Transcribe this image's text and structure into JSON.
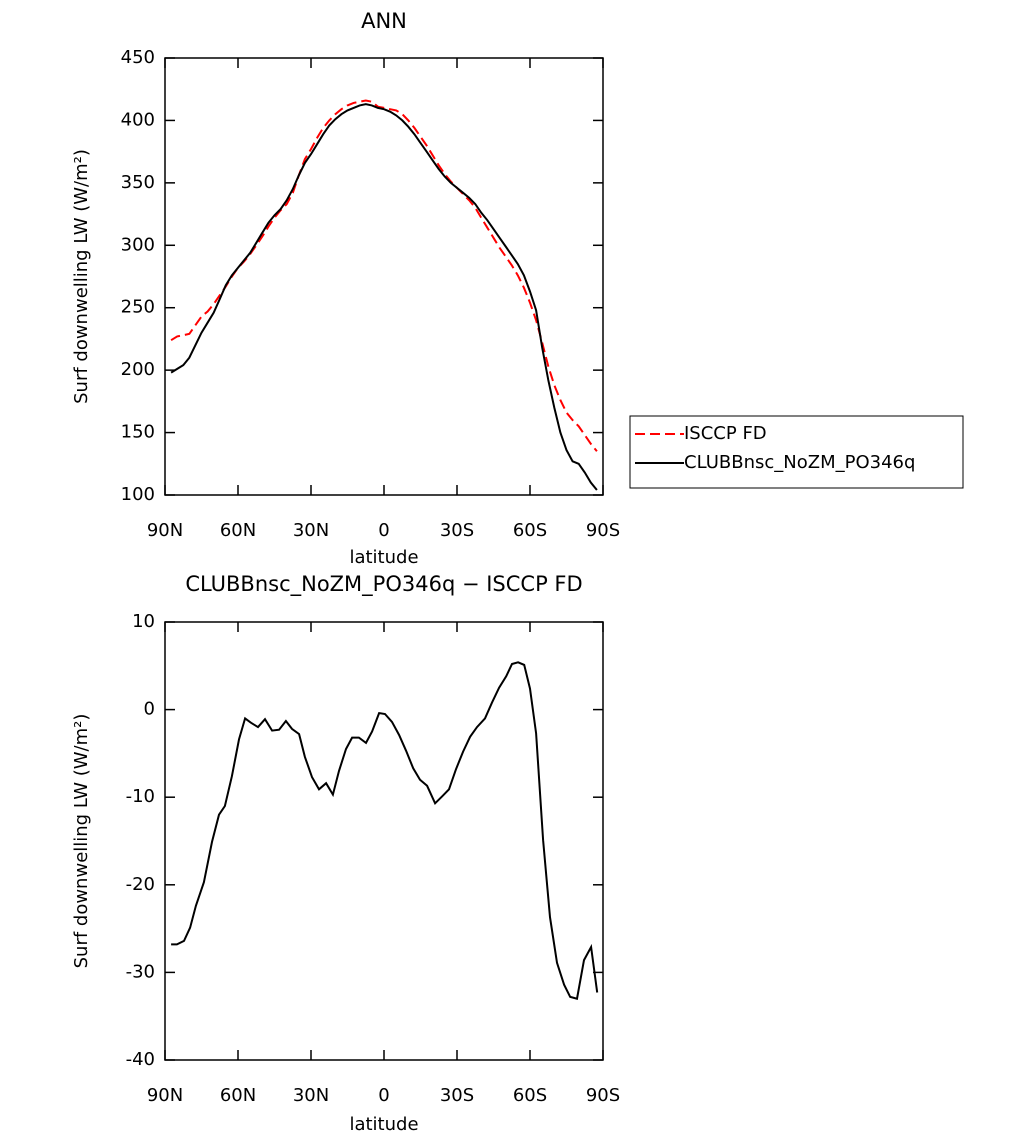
{
  "chart_data": [
    {
      "type": "line",
      "title": "ANN",
      "x_label": "latitude",
      "y_label": "Surf downwelling LW (W/m²)",
      "x": [
        87.5,
        85,
        82.5,
        80,
        77.5,
        75,
        72.5,
        70,
        67.5,
        65,
        62.5,
        60,
        57.5,
        55,
        52.5,
        50,
        47.5,
        45,
        42.5,
        40,
        37.5,
        35,
        32.5,
        30,
        27.5,
        25,
        22.5,
        20,
        17.5,
        15,
        12.5,
        10,
        7.5,
        5,
        2.5,
        0,
        -2.5,
        -5,
        -7.5,
        -10,
        -12.5,
        -15,
        -17.5,
        -20,
        -22.5,
        -25,
        -27.5,
        -30,
        -32.5,
        -35,
        -37.5,
        -40,
        -42.5,
        -45,
        -47.5,
        -50,
        -52.5,
        -55,
        -57.5,
        -60,
        -62.5,
        -65,
        -67.5,
        -70,
        -72.5,
        -75,
        -77.5,
        -80,
        -82.5,
        -85,
        -87.5
      ],
      "series": [
        {
          "name": "ISCCP FD",
          "color": "#ff0000",
          "line_style": "dashed",
          "values": [
            224,
            227,
            228,
            229,
            236,
            243,
            247,
            253,
            260,
            267,
            275,
            282,
            287,
            293,
            300,
            307,
            315,
            322,
            328,
            333,
            342,
            356,
            369,
            377,
            386,
            394,
            400,
            405,
            409,
            412,
            414,
            415,
            416,
            415,
            411,
            410,
            409,
            408,
            405,
            400,
            394,
            387,
            380,
            372,
            364,
            357,
            351,
            346,
            341,
            336,
            330,
            322,
            314,
            306,
            298,
            291,
            284,
            276,
            266,
            254,
            240,
            222,
            203,
            188,
            176,
            166,
            160,
            155,
            148,
            141,
            135
          ]
        },
        {
          "name": "CLUBBnsc_NoZM_PO346q",
          "color": "#000000",
          "line_style": "solid",
          "values": [
            198,
            201,
            204,
            210,
            220,
            230,
            238,
            246,
            257,
            268,
            276,
            282,
            288,
            294,
            302,
            310,
            318,
            324,
            329,
            336,
            345,
            356,
            366,
            373,
            381,
            389,
            396,
            401,
            405,
            408,
            410,
            412,
            413,
            412,
            410,
            409,
            407,
            404,
            400,
            395,
            389,
            382,
            375,
            368,
            361,
            355,
            350,
            346,
            342,
            338,
            333,
            326,
            320,
            313,
            306,
            299,
            292,
            285,
            276,
            263,
            248,
            218,
            192,
            170,
            150,
            136,
            127,
            125,
            118,
            110,
            104
          ]
        }
      ],
      "xlim": [
        90,
        -90
      ],
      "ylim": [
        100,
        450
      ],
      "xticks": [
        {
          "value": 90,
          "label": "90N"
        },
        {
          "value": 60,
          "label": "60N"
        },
        {
          "value": 30,
          "label": "30N"
        },
        0,
        {
          "value": -30,
          "label": "30S"
        },
        {
          "value": -60,
          "label": "60S"
        },
        {
          "value": -90,
          "label": "90S"
        }
      ],
      "yticks": [
        100,
        150,
        200,
        250,
        300,
        350,
        400,
        450
      ],
      "legend": "outside-right"
    },
    {
      "type": "line",
      "title": "CLUBBnsc_NoZM_PO346q − ISCCP FD",
      "x_label": "latitude",
      "y_label": "Surf downwelling LW (W/m²)",
      "x": [
        87.5,
        85.1,
        82.2,
        79.7,
        77.3,
        74,
        70.7,
        67.8,
        65.4,
        62.5,
        59.6,
        57.1,
        54.7,
        51.8,
        48.9,
        46,
        43.1,
        40.3,
        37.8,
        34.9,
        32.5,
        29.6,
        26.7,
        23.8,
        21,
        18.5,
        15.6,
        13.1,
        10.3,
        7.4,
        4.9,
        2,
        -0.4,
        -3.3,
        -6.2,
        -9.1,
        -12,
        -14.8,
        -17.7,
        -21,
        -23.9,
        -26.7,
        -29.6,
        -32.5,
        -35.4,
        -38.2,
        -41.5,
        -44.4,
        -47.3,
        -50.2,
        -52.6,
        -55.1,
        -57.6,
        -60,
        -62.5,
        -65.4,
        -68.2,
        -71.1,
        -74,
        -76.5,
        -79.3,
        -82.2,
        -85.1,
        -87.6
      ],
      "series": [
        {
          "color": "#000000",
          "line_style": "solid",
          "values": [
            -26.8,
            -26.8,
            -26.4,
            -24.9,
            -22.4,
            -19.7,
            -15.1,
            -12.0,
            -11.0,
            -7.6,
            -3.4,
            -1.0,
            -1.5,
            -2.0,
            -1.1,
            -2.4,
            -2.3,
            -1.3,
            -2.2,
            -2.8,
            -5.4,
            -7.7,
            -9.1,
            -8.4,
            -9.7,
            -7.0,
            -4.5,
            -3.2,
            -3.2,
            -3.8,
            -2.5,
            -0.4,
            -0.5,
            -1.4,
            -2.9,
            -4.7,
            -6.7,
            -8.0,
            -8.7,
            -10.7,
            -9.9,
            -9.1,
            -6.8,
            -4.8,
            -3.1,
            -2.0,
            -1.0,
            0.8,
            2.5,
            3.8,
            5.2,
            5.4,
            5.1,
            2.4,
            -2.7,
            -14.9,
            -23.7,
            -28.9,
            -31.4,
            -32.8,
            -33.0,
            -28.6,
            -27.1,
            -32.3
          ]
        }
      ],
      "xlim": [
        90,
        -90
      ],
      "ylim": [
        -40,
        10
      ],
      "xticks": [
        {
          "value": 90,
          "label": "90N"
        },
        {
          "value": 60,
          "label": "60N"
        },
        {
          "value": 30,
          "label": "30N"
        },
        0,
        {
          "value": -30,
          "label": "30S"
        },
        {
          "value": -60,
          "label": "60S"
        },
        {
          "value": -90,
          "label": "90S"
        }
      ],
      "yticks": [
        -40,
        -30,
        -20,
        -10,
        0,
        10
      ]
    }
  ]
}
